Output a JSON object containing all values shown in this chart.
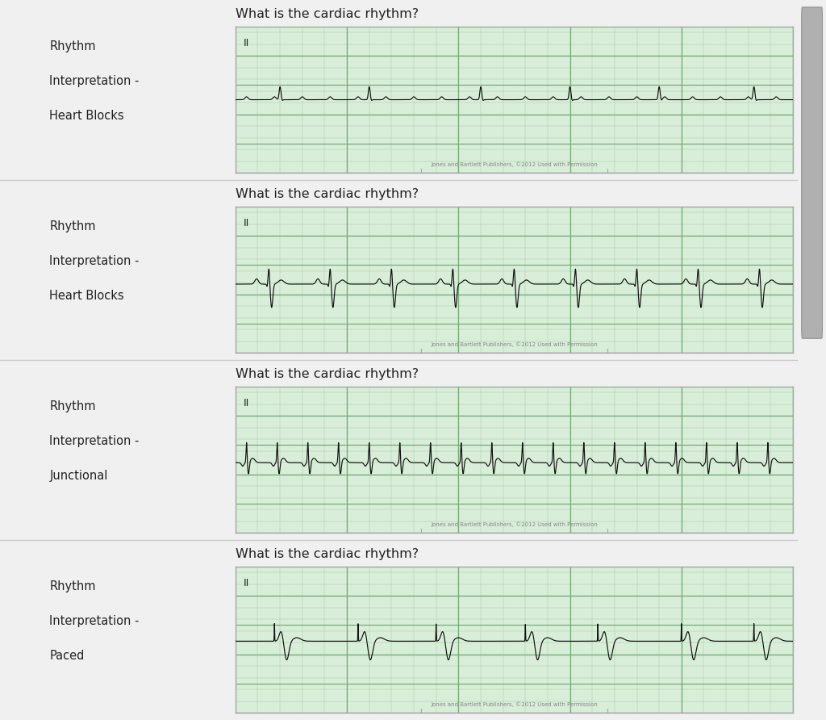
{
  "bg_color": "#f0f0f0",
  "panel_bg": "#d8eed8",
  "grid_minor_color": "#a8cca8",
  "grid_major_color": "#78aa78",
  "ecg_color": "#111111",
  "border_color": "#aaaaaa",
  "text_color": "#222222",
  "separator_color": "#cccccc",
  "footer_text": "Jones and Bartlett Publishers, ©2012 Used with Permission",
  "rows": [
    {
      "label_line1": "Rhythm",
      "label_line2": "Interpretation -",
      "label_line3": "Heart Blocks",
      "question": "What is the cardiac rhythm?",
      "lead": "II",
      "type": "heart_block_1"
    },
    {
      "label_line1": "Rhythm",
      "label_line2": "Interpretation -",
      "label_line3": "Heart Blocks",
      "question": "What is the cardiac rhythm?",
      "lead": "II",
      "type": "heart_block_2"
    },
    {
      "label_line1": "Rhythm",
      "label_line2": "Interpretation -",
      "label_line3": "Junctional",
      "question": "What is the cardiac rhythm?",
      "lead": "II",
      "type": "junctional"
    },
    {
      "label_line1": "Rhythm",
      "label_line2": "Interpretation -",
      "label_line3": "Paced",
      "question": "What is the cardiac rhythm?",
      "lead": "II",
      "type": "paced"
    }
  ]
}
